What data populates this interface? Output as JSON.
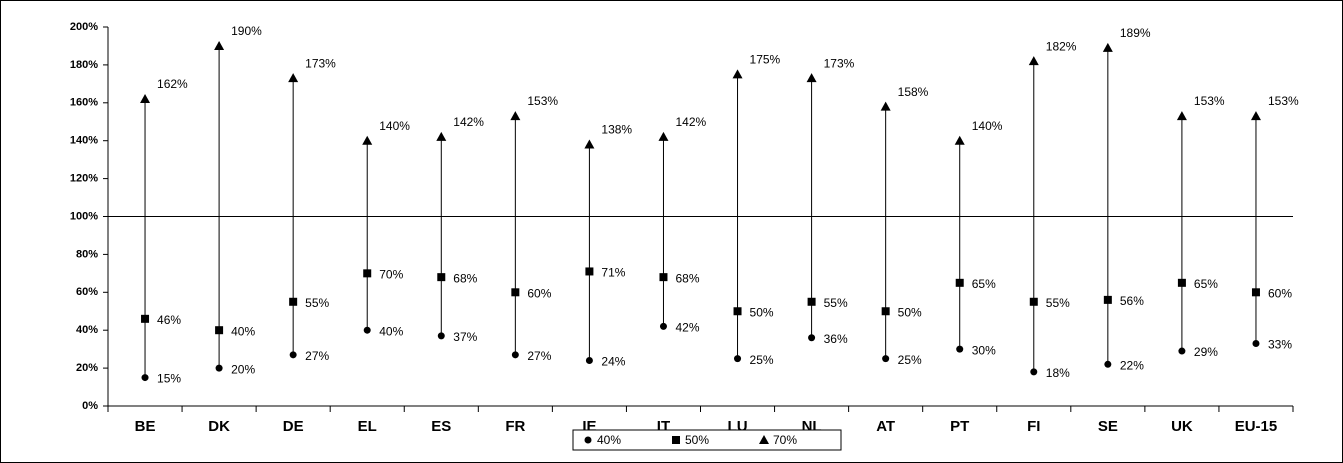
{
  "chart_data": {
    "type": "hilo",
    "categories": [
      "BE",
      "DK",
      "DE",
      "EL",
      "ES",
      "FR",
      "IE",
      "IT",
      "LU",
      "NL",
      "AT",
      "PT",
      "FI",
      "SE",
      "UK",
      "EU-15"
    ],
    "series": [
      {
        "name": "40%",
        "color": "#000000",
        "marker": "circle",
        "values": [
          15,
          20,
          27,
          40,
          37,
          27,
          24,
          42,
          25,
          36,
          25,
          30,
          18,
          22,
          29,
          33
        ],
        "value_labels": [
          "15%",
          "20%",
          "27%",
          "40%",
          "37%",
          "27%",
          "24%",
          "42%",
          "25%",
          "36%",
          "25%",
          "30%",
          "18%",
          "22%",
          "29%",
          "33%"
        ]
      },
      {
        "name": "50%",
        "color": "#000000",
        "marker": "square",
        "values": [
          46,
          40,
          55,
          70,
          68,
          60,
          71,
          68,
          50,
          55,
          50,
          65,
          55,
          56,
          65,
          60
        ],
        "value_labels": [
          "46%",
          "40%",
          "55%",
          "70%",
          "68%",
          "60%",
          "71%",
          "68%",
          "50%",
          "55%",
          "50%",
          "65%",
          "55%",
          "56%",
          "65%",
          "60%"
        ]
      },
      {
        "name": "70%",
        "color": "#000000",
        "marker": "triangle",
        "values": [
          162,
          190,
          173,
          140,
          142,
          153,
          138,
          142,
          175,
          173,
          158,
          140,
          182,
          189,
          153,
          153
        ],
        "value_labels": [
          "162%",
          "190%",
          "173%",
          "140%",
          "142%",
          "153%",
          "138%",
          "142%",
          "175%",
          "173%",
          "158%",
          "140%",
          "182%",
          "189%",
          "153%",
          "153%"
        ]
      }
    ],
    "ylim": [
      0,
      200
    ],
    "yticks": [
      {
        "value": 0,
        "label": "0%"
      },
      {
        "value": 20,
        "label": "20%"
      },
      {
        "value": 40,
        "label": "40%"
      },
      {
        "value": 60,
        "label": "60%"
      },
      {
        "value": 80,
        "label": "80%"
      },
      {
        "value": 100,
        "label": "100%"
      },
      {
        "value": 120,
        "label": "120%"
      },
      {
        "value": 140,
        "label": "140%"
      },
      {
        "value": 160,
        "label": "160%"
      },
      {
        "value": 180,
        "label": "180%"
      },
      {
        "value": 200,
        "label": "200%"
      }
    ],
    "reference_line": 100,
    "legend": "bottom"
  }
}
